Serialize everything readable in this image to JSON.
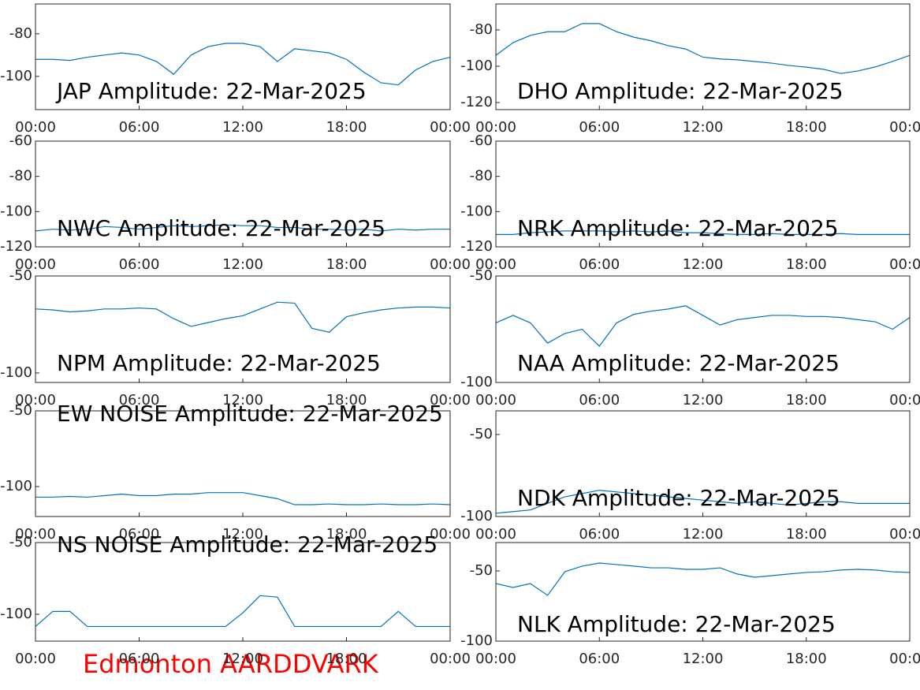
{
  "footer": "Edmonton AARDDVARK",
  "chart_data": [
    {
      "type": "line",
      "title": "JAP Amplitude: 22-Mar-2025",
      "x": [
        0,
        1,
        2,
        3,
        4,
        5,
        6,
        7,
        8,
        9,
        10,
        11,
        12,
        13,
        14,
        15,
        16,
        17,
        18,
        19,
        20,
        21,
        22,
        23,
        24
      ],
      "series": [
        {
          "color": "#0072bd",
          "values": [
            -92,
            -92,
            -92.5,
            -91,
            -90,
            -89,
            -90,
            -93,
            -99,
            -90,
            -86,
            -84.5,
            -84.5,
            -86,
            -93,
            -87,
            -88,
            -89,
            -92,
            -98,
            -103,
            -104,
            -97,
            -93,
            -91
          ]
        }
      ],
      "xlim": [
        0,
        24
      ],
      "xticks": [
        {
          "value": 0,
          "label": "00:00"
        },
        {
          "value": 6,
          "label": "06:00"
        },
        {
          "value": 12,
          "label": "12:00"
        },
        {
          "value": 18,
          "label": "18:00"
        },
        {
          "value": 24,
          "label": "00:00"
        }
      ],
      "ylim": [
        -115.6,
        -66
      ],
      "yticks": [
        -100,
        -80
      ]
    },
    {
      "type": "line",
      "title": "DHO Amplitude: 22-Mar-2025",
      "x": [
        0,
        1,
        2,
        3,
        4,
        5,
        6,
        7,
        8,
        9,
        10,
        11,
        12,
        13,
        14,
        15,
        16,
        17,
        18,
        19,
        20,
        21,
        22,
        23,
        24
      ],
      "series": [
        {
          "color": "#0072bd",
          "values": [
            -94,
            -87,
            -83,
            -81,
            -81,
            -76.5,
            -76.5,
            -81,
            -84,
            -86,
            -88.7,
            -90.5,
            -95,
            -96,
            -96.5,
            -97.4,
            -98.3,
            -99.6,
            -100.5,
            -101.7,
            -104,
            -102.6,
            -100.4,
            -97.4,
            -94
          ]
        }
      ],
      "xlim": [
        0,
        24
      ],
      "xticks": [
        {
          "value": 0,
          "label": "00:00"
        },
        {
          "value": 6,
          "label": "06:00"
        },
        {
          "value": 12,
          "label": "12:00"
        },
        {
          "value": 18,
          "label": "18:00"
        },
        {
          "value": 24,
          "label": "00:00"
        }
      ],
      "ylim": [
        -123.9,
        -65.7
      ],
      "yticks": [
        -120,
        -100,
        -80
      ]
    },
    {
      "type": "line",
      "title": "NWC Amplitude: 22-Mar-2025",
      "x": [
        0,
        1,
        2,
        3,
        4,
        5,
        6,
        7,
        8,
        9,
        10,
        11,
        12,
        13,
        14,
        15,
        16,
        17,
        18,
        19,
        20,
        21,
        22,
        23,
        24
      ],
      "series": [
        {
          "color": "#0072bd",
          "values": [
            -111,
            -110,
            -110.5,
            -110,
            -108.5,
            -109,
            -110,
            -109,
            -108,
            -108.5,
            -108,
            -107.5,
            -108,
            -108,
            -109,
            -109,
            -110,
            -110,
            -110.5,
            -110,
            -111,
            -110,
            -110.5,
            -110,
            -110
          ]
        }
      ],
      "xlim": [
        0,
        24
      ],
      "xticks": [
        {
          "value": 0,
          "label": "00:00"
        },
        {
          "value": 6,
          "label": "06:00"
        },
        {
          "value": 12,
          "label": "12:00"
        },
        {
          "value": 18,
          "label": "18:00"
        },
        {
          "value": 24,
          "label": "00:00"
        }
      ],
      "ylim": [
        -120,
        -60
      ],
      "yticks": [
        -120,
        -100,
        -80,
        -60
      ]
    },
    {
      "type": "line",
      "title": "NRK Amplitude: 22-Mar-2025",
      "x": [
        0,
        1,
        2,
        3,
        4,
        5,
        6,
        7,
        8,
        9,
        10,
        11,
        12,
        13,
        14,
        15,
        16,
        17,
        18,
        19,
        20,
        21,
        22,
        23,
        24
      ],
      "series": [
        {
          "color": "#0072bd",
          "values": [
            -113,
            -113,
            -112,
            -111.5,
            -111,
            -111,
            -111,
            -111.5,
            -111,
            -111.5,
            -111,
            -112,
            -112,
            -112.5,
            -113,
            -113,
            -112.5,
            -113,
            -113,
            -113,
            -112.5,
            -113,
            -113,
            -113,
            -113
          ]
        }
      ],
      "xlim": [
        0,
        24
      ],
      "xticks": [
        {
          "value": 0,
          "label": "00:00"
        },
        {
          "value": 6,
          "label": "06:00"
        },
        {
          "value": 12,
          "label": "12:00"
        },
        {
          "value": 18,
          "label": "18:00"
        },
        {
          "value": 24,
          "label": "00:00"
        }
      ],
      "ylim": [
        -120,
        -60
      ],
      "yticks": [
        -120,
        -100,
        -80,
        -60
      ]
    },
    {
      "type": "line",
      "title": "NPM Amplitude: 22-Mar-2025",
      "x": [
        0,
        1,
        2,
        3,
        4,
        5,
        6,
        7,
        8,
        9,
        10,
        11,
        12,
        13,
        14,
        15,
        16,
        17,
        18,
        19,
        20,
        21,
        22,
        23,
        24
      ],
      "series": [
        {
          "color": "#0072bd",
          "values": [
            -67,
            -67.5,
            -68.5,
            -68,
            -67,
            -67,
            -66.5,
            -67,
            -72,
            -76,
            -74,
            -72,
            -70.5,
            -67,
            -63.5,
            -64,
            -77,
            -79,
            -71,
            -69,
            -67.5,
            -66.5,
            -66,
            -66,
            -66.5
          ]
        }
      ],
      "xlim": [
        0,
        24
      ],
      "xticks": [
        {
          "value": 0,
          "label": "00:00"
        },
        {
          "value": 6,
          "label": "06:00"
        },
        {
          "value": 12,
          "label": "12:00"
        },
        {
          "value": 18,
          "label": "18:00"
        },
        {
          "value": 24,
          "label": "00:00"
        }
      ],
      "ylim": [
        -104.9,
        -50
      ],
      "yticks": [
        -100,
        -50
      ]
    },
    {
      "type": "line",
      "title": "NAA Amplitude: 22-Mar-2025",
      "x": [
        0,
        1,
        2,
        3,
        4,
        5,
        6,
        7,
        8,
        9,
        10,
        11,
        12,
        13,
        14,
        15,
        16,
        17,
        18,
        19,
        20,
        21,
        22,
        23,
        24
      ],
      "series": [
        {
          "color": "#0072bd",
          "values": [
            -72,
            -68.5,
            -72,
            -81.5,
            -77,
            -75,
            -83,
            -72,
            -68,
            -66.5,
            -65.5,
            -64,
            -68.5,
            -73,
            -70.5,
            -69.5,
            -68.5,
            -68.5,
            -69,
            -69,
            -69.5,
            -70.5,
            -71.5,
            -75,
            -69.5
          ]
        }
      ],
      "xlim": [
        0,
        24
      ],
      "xticks": [
        {
          "value": 0,
          "label": "00:00"
        },
        {
          "value": 6,
          "label": "06:00"
        },
        {
          "value": 12,
          "label": "12:00"
        },
        {
          "value": 18,
          "label": "18:00"
        },
        {
          "value": 24,
          "label": "00:00"
        }
      ],
      "ylim": [
        -100,
        -50
      ],
      "yticks": [
        -100,
        -50
      ]
    },
    {
      "type": "line",
      "title": "EW NOISE Amplitude: 22-Mar-2025",
      "x": [
        0,
        1,
        2,
        3,
        4,
        5,
        6,
        7,
        8,
        9,
        10,
        11,
        12,
        13,
        14,
        15,
        16,
        17,
        18,
        19,
        20,
        21,
        22,
        23,
        24
      ],
      "series": [
        {
          "color": "#0072bd",
          "values": [
            -107,
            -107,
            -106.5,
            -107,
            -106,
            -105,
            -106,
            -106,
            -105,
            -105,
            -104,
            -104,
            -104,
            -106,
            -108,
            -112,
            -112,
            -111.5,
            -112,
            -112,
            -111.5,
            -112,
            -112,
            -111.5,
            -112
          ]
        }
      ],
      "xlim": [
        0,
        24
      ],
      "xticks": [
        {
          "value": 0,
          "label": "00:00"
        },
        {
          "value": 6,
          "label": "06:00"
        },
        {
          "value": 12,
          "label": "12:00"
        },
        {
          "value": 18,
          "label": "18:00"
        },
        {
          "value": 24,
          "label": "00:00"
        }
      ],
      "ylim": [
        -119.8,
        -50
      ],
      "yticks": [
        -100,
        -50
      ]
    },
    {
      "type": "line",
      "title": "NDK Amplitude: 22-Mar-2025",
      "x": [
        0,
        1,
        2,
        3,
        4,
        5,
        6,
        7,
        8,
        9,
        10,
        11,
        12,
        13,
        14,
        15,
        16,
        17,
        18,
        19,
        20,
        21,
        22,
        23,
        24
      ],
      "series": [
        {
          "color": "#0072bd",
          "values": [
            -98,
            -97,
            -96,
            -92,
            -88,
            -86,
            -84,
            -85,
            -86,
            -87,
            -88,
            -89,
            -90,
            -91,
            -92,
            -91,
            -92,
            -93,
            -92,
            -91,
            -91,
            -92,
            -92,
            -92,
            -92
          ]
        }
      ],
      "xlim": [
        0,
        24
      ],
      "xticks": [
        {
          "value": 0,
          "label": "00:00"
        },
        {
          "value": 6,
          "label": "06:00"
        },
        {
          "value": 12,
          "label": "12:00"
        },
        {
          "value": 18,
          "label": "18:00"
        },
        {
          "value": 24,
          "label": "00:00"
        }
      ],
      "ylim": [
        -100,
        -35.6
      ],
      "yticks": [
        -100,
        -50
      ]
    },
    {
      "type": "line",
      "title": "NS NOISE Amplitude: 22-Mar-2025",
      "x": [
        0,
        1,
        2,
        3,
        4,
        5,
        6,
        7,
        8,
        9,
        10,
        11,
        12,
        13,
        14,
        15,
        16,
        17,
        18,
        19,
        20,
        21,
        22,
        23,
        24
      ],
      "series": [
        {
          "color": "#0072bd",
          "values": [
            -108.5,
            -98,
            -98,
            -108.5,
            -108.5,
            -108.5,
            -108.5,
            -108.5,
            -108.5,
            -108.5,
            -108.5,
            -108.5,
            -99,
            -87,
            -88,
            -108.5,
            -108.5,
            -108.5,
            -108.5,
            -108.5,
            -108.5,
            -98,
            -108.5,
            -108.5,
            -108.5
          ]
        }
      ],
      "xlim": [
        0,
        24
      ],
      "xticks": [
        {
          "value": 0,
          "label": "00:00"
        },
        {
          "value": 6,
          "label": "06:00"
        },
        {
          "value": 12,
          "label": "12:00"
        },
        {
          "value": 18,
          "label": "18:00"
        },
        {
          "value": 24,
          "label": "00:00"
        }
      ],
      "ylim": [
        -118.7,
        -50
      ],
      "yticks": [
        -100,
        -50
      ]
    },
    {
      "type": "line",
      "title": "NLK Amplitude: 22-Mar-2025",
      "x": [
        0,
        1,
        2,
        3,
        4,
        5,
        6,
        7,
        8,
        9,
        10,
        11,
        12,
        13,
        14,
        15,
        16,
        17,
        18,
        19,
        20,
        21,
        22,
        23,
        24
      ],
      "series": [
        {
          "color": "#0072bd",
          "values": [
            -59,
            -61.8,
            -59,
            -67.4,
            -50.6,
            -46.6,
            -44.4,
            -45.5,
            -46.6,
            -47.8,
            -47.8,
            -48.9,
            -48.9,
            -47.8,
            -52.2,
            -54.5,
            -53.4,
            -52.2,
            -51.1,
            -50.6,
            -49.4,
            -48.9,
            -49.4,
            -50.6,
            -51.1
          ]
        }
      ],
      "xlim": [
        0,
        24
      ],
      "xticks": [
        {
          "value": 0,
          "label": "00:00"
        },
        {
          "value": 6,
          "label": "06:00"
        },
        {
          "value": 12,
          "label": "12:00"
        },
        {
          "value": 18,
          "label": "18:00"
        },
        {
          "value": 24,
          "label": "00:00"
        }
      ],
      "ylim": [
        -100,
        -29.8
      ],
      "yticks": [
        -100,
        -50
      ]
    }
  ]
}
